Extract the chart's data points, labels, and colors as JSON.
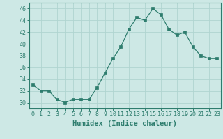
{
  "x": [
    0,
    1,
    2,
    3,
    4,
    5,
    6,
    7,
    8,
    9,
    10,
    11,
    12,
    13,
    14,
    15,
    16,
    17,
    18,
    19,
    20,
    21,
    22,
    23
  ],
  "y": [
    33,
    32,
    32,
    30.5,
    30,
    30.5,
    30.5,
    30.5,
    32.5,
    35,
    37.5,
    39.5,
    42.5,
    44.5,
    44,
    46,
    45,
    42.5,
    41.5,
    42,
    39.5,
    38,
    37.5,
    37.5
  ],
  "line_color": "#2e7d6e",
  "marker_color": "#2e7d6e",
  "bg_color": "#cde8e5",
  "grid_color": "#b0d4d0",
  "xlabel": "Humidex (Indice chaleur)",
  "ylim": [
    29,
    47
  ],
  "xlim": [
    -0.5,
    23.5
  ],
  "yticks": [
    30,
    32,
    34,
    36,
    38,
    40,
    42,
    44,
    46
  ],
  "xticks": [
    0,
    1,
    2,
    3,
    4,
    5,
    6,
    7,
    8,
    9,
    10,
    11,
    12,
    13,
    14,
    15,
    16,
    17,
    18,
    19,
    20,
    21,
    22,
    23
  ],
  "xlabel_fontsize": 7.5,
  "tick_fontsize": 6.0
}
